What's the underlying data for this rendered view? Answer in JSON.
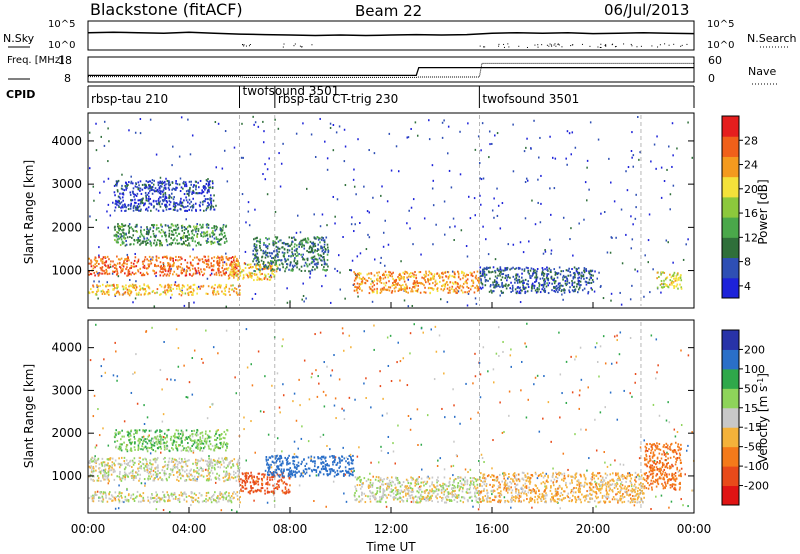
{
  "header": {
    "station": "Blackstone (fitACF)",
    "beam": "Beam 22",
    "date": "06/Jul/2013"
  },
  "colors": {
    "power_scale": [
      "#1d22d9",
      "#2e4fb4",
      "#2f6f3a",
      "#4aa84a",
      "#8cc83c",
      "#f4e23a",
      "#f49a1e",
      "#f0601a",
      "#e51e1e"
    ],
    "velocity_scale": [
      "#2833a8",
      "#2a6fc8",
      "#2fa84a",
      "#8ed45a",
      "#c8c8c8",
      "#f4b23a",
      "#f47a1a",
      "#e84a1a",
      "#e01414"
    ],
    "background": "#ffffff"
  },
  "chart_data": [
    {
      "type": "line",
      "panel": "N.Sky / N.Search",
      "left_label": "N.Sky",
      "right_label": "N.Search",
      "left_ticks": [
        "10^5",
        "10^0"
      ],
      "right_ticks": [
        "10^5",
        "10^0"
      ],
      "x": [
        0,
        1,
        2,
        3,
        4,
        5,
        6,
        7,
        8,
        9,
        10,
        11,
        12,
        13,
        14,
        15,
        16,
        17,
        18,
        19,
        20,
        21,
        22,
        23,
        24
      ],
      "series": [
        {
          "name": "N.Sky",
          "values": [
            3.1,
            3.2,
            3.1,
            3.0,
            3.2,
            3.0,
            2.8,
            2.7,
            2.6,
            2.5,
            2.6,
            2.5,
            2.6,
            2.7,
            2.6,
            2.7,
            3.0,
            3.1,
            3.0,
            3.1,
            2.9,
            3.0,
            3.1,
            3.0,
            2.9
          ]
        }
      ]
    },
    {
      "type": "line",
      "panel": "Freq / Nave",
      "left_label": "Freq. [MHz]",
      "right_label": "Nave",
      "left_ticks": [
        "18",
        "8"
      ],
      "right_ticks": [
        "60",
        "0"
      ],
      "x": [
        0,
        6,
        6.2,
        13.0,
        13.1,
        15.5,
        15.6,
        24
      ],
      "series": [
        {
          "name": "Freq.",
          "values": [
            10.3,
            10.3,
            10.3,
            10.3,
            14.2,
            14.2,
            14.2,
            14.2
          ]
        },
        {
          "name": "Nave",
          "values": [
            10,
            10,
            8,
            8,
            9,
            9,
            50,
            50
          ]
        }
      ]
    },
    {
      "type": "table",
      "panel": "CPID",
      "label": "CPID",
      "segments": [
        {
          "start": 0,
          "end": 6,
          "name": "rbsp-tau 210"
        },
        {
          "start": 6,
          "end": 7.4,
          "name": "twofsound 3501"
        },
        {
          "start": 7.4,
          "end": 15.5,
          "name": "rbsp-tau CT-trig 230"
        },
        {
          "start": 15.5,
          "end": 24,
          "name": "twofsound 3501"
        }
      ]
    },
    {
      "type": "heatmap",
      "panel": "Power",
      "ylabel": "Slant Range [km]",
      "xlabel": "",
      "colorbar_label": "Power [dB]",
      "colorbar_ticks": [
        4,
        8,
        12,
        16,
        20,
        24,
        28
      ],
      "y_ticks": [
        1000,
        2000,
        3000,
        4000
      ],
      "ylim": [
        180,
        4600
      ],
      "xlim": [
        0,
        24
      ],
      "features": [
        {
          "t0": 0.0,
          "t1": 6.0,
          "r0": 900,
          "r1": 1350,
          "power": 26
        },
        {
          "t0": 0.0,
          "t1": 6.0,
          "r0": 450,
          "r1": 700,
          "power": 22
        },
        {
          "t0": 1.0,
          "t1": 5.5,
          "r0": 1600,
          "r1": 2100,
          "power": 12
        },
        {
          "t0": 1.0,
          "t1": 5.0,
          "r0": 2400,
          "r1": 3100,
          "power": 6
        },
        {
          "t0": 5.5,
          "t1": 7.5,
          "r0": 800,
          "r1": 1200,
          "power": 22
        },
        {
          "t0": 6.5,
          "t1": 9.5,
          "r0": 1000,
          "r1": 1800,
          "power": 10
        },
        {
          "t0": 10.5,
          "t1": 15.5,
          "r0": 500,
          "r1": 1000,
          "power": 24
        },
        {
          "t0": 15.5,
          "t1": 20.0,
          "r0": 500,
          "r1": 1100,
          "power": 8
        },
        {
          "t0": 22.5,
          "t1": 23.5,
          "r0": 600,
          "r1": 1000,
          "power": 20
        }
      ]
    },
    {
      "type": "heatmap",
      "panel": "Velocity",
      "ylabel": "Slant Range [km]",
      "xlabel": "Time UT",
      "colorbar_label": "Velocity [m s^-1]",
      "colorbar_ticks": [
        200,
        100,
        50,
        15,
        -15,
        -50,
        -100,
        -200
      ],
      "y_ticks": [
        1000,
        2000,
        3000,
        4000
      ],
      "ylim": [
        180,
        4600
      ],
      "xlim": [
        0,
        24
      ],
      "x_ticks": [
        "00:00",
        "04:00",
        "08:00",
        "12:00",
        "16:00",
        "20:00",
        "00:00"
      ],
      "features": [
        {
          "t0": 0.0,
          "t1": 6.0,
          "r0": 900,
          "r1": 1450,
          "vel": 0
        },
        {
          "t0": 0.0,
          "t1": 6.0,
          "r0": 400,
          "r1": 650,
          "vel": 0
        },
        {
          "t0": 1.0,
          "t1": 5.5,
          "r0": 1600,
          "r1": 2100,
          "vel": 40
        },
        {
          "t0": 6.0,
          "t1": 8.0,
          "r0": 600,
          "r1": 1100,
          "vel": -120
        },
        {
          "t0": 7.0,
          "t1": 10.5,
          "r0": 1000,
          "r1": 1500,
          "vel": 150
        },
        {
          "t0": 10.5,
          "t1": 15.5,
          "r0": 400,
          "r1": 1000,
          "vel": 0
        },
        {
          "t0": 15.5,
          "t1": 22.0,
          "r0": 400,
          "r1": 1100,
          "vel": -30
        },
        {
          "t0": 22.0,
          "t1": 23.5,
          "r0": 700,
          "r1": 1800,
          "vel": -80
        }
      ]
    }
  ]
}
